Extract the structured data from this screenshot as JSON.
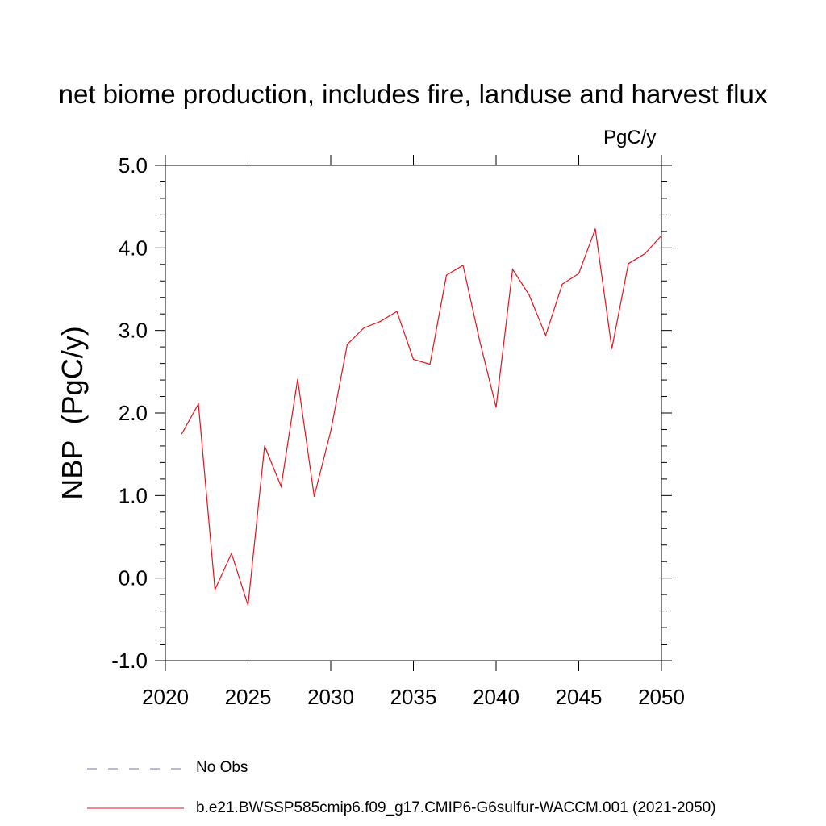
{
  "chart_data": {
    "type": "line",
    "title": "net biome production, includes fire, landuse and harvest flux",
    "units": "PgC/y",
    "ylabel": "NBP  (PgC/y)",
    "xlim": [
      2020,
      2050
    ],
    "ylim": [
      -1.0,
      5.0
    ],
    "x_ticks": [
      "2020",
      "2025",
      "2030",
      "2035",
      "2040",
      "2045",
      "2050"
    ],
    "y_ticks": [
      "-1.0",
      "0.0",
      "1.0",
      "2.0",
      "3.0",
      "4.0",
      "5.0"
    ],
    "grid": false,
    "legend_position": "bottom",
    "series": [
      {
        "name": "No Obs",
        "style": "dashed",
        "color": "#7b6fb0",
        "x": [],
        "y": []
      },
      {
        "name": "b.e21.BWSSP585cmip6.f09_g17.CMIP6-G6sulfur-WACCM.001 (2021-2050)",
        "style": "solid",
        "color": "#e8121c",
        "x": [
          2021,
          2022,
          2023,
          2024,
          2025,
          2026,
          2027,
          2028,
          2029,
          2030,
          2031,
          2032,
          2033,
          2034,
          2035,
          2036,
          2037,
          2038,
          2039,
          2040,
          2041,
          2042,
          2043,
          2044,
          2045,
          2046,
          2047,
          2048,
          2049,
          2050
        ],
        "y": [
          1.75,
          2.11,
          -0.14,
          0.3,
          -0.33,
          1.6,
          1.11,
          2.41,
          0.99,
          1.78,
          2.83,
          3.03,
          3.11,
          3.23,
          2.65,
          2.59,
          3.67,
          3.79,
          2.88,
          2.07,
          3.74,
          3.43,
          2.94,
          3.56,
          3.69,
          4.23,
          2.78,
          3.81,
          3.93,
          4.15
        ]
      }
    ]
  }
}
